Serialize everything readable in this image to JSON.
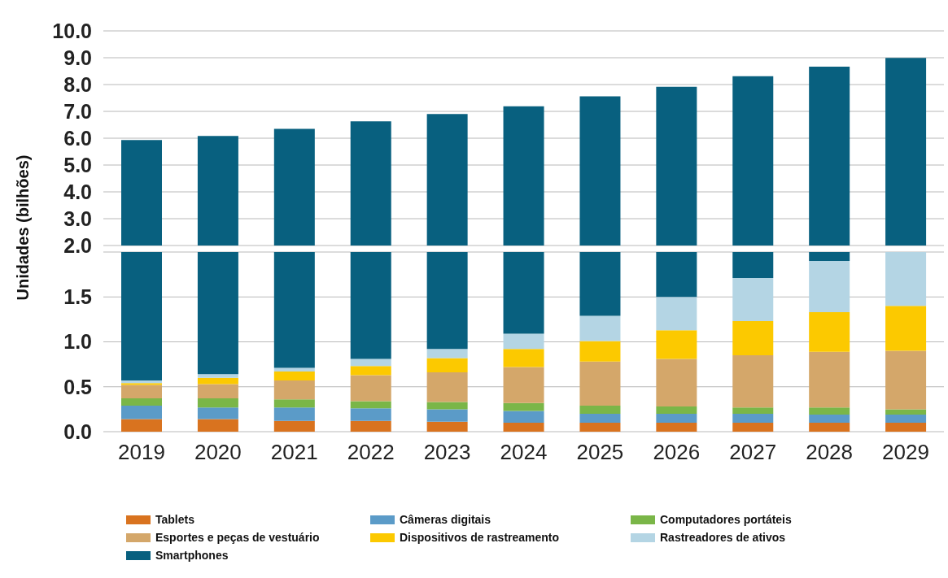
{
  "chart_data": [
    {
      "type": "bar",
      "ylabel": "Unidades (bilhões)",
      "categories": [
        "2019",
        "2020",
        "2021",
        "2022",
        "2023",
        "2024",
        "2025",
        "2026",
        "2027",
        "2028",
        "2029"
      ],
      "series": [
        {
          "color": "#08607f",
          "values": [
            5.93,
            6.08,
            6.35,
            6.63,
            6.9,
            7.19,
            7.56,
            7.92,
            8.31,
            8.67,
            8.99
          ]
        }
      ],
      "ylim": [
        2,
        10
      ],
      "yticks": [
        {
          "value": 2,
          "label": "2.0"
        },
        {
          "value": 3,
          "label": "3.0"
        },
        {
          "value": 4,
          "label": "4.0"
        },
        {
          "value": 5,
          "label": "5.0"
        },
        {
          "value": 6,
          "label": "6.0"
        },
        {
          "value": 7,
          "label": "7.0"
        },
        {
          "value": 8,
          "label": "8.0"
        },
        {
          "value": 9,
          "label": "9.0"
        },
        {
          "value": 10,
          "label": "10.0"
        }
      ],
      "grid": "y",
      "tick_labels": "y"
    },
    {
      "type": "bar",
      "stacked": true,
      "categories": [
        "2019",
        "2020",
        "2021",
        "2022",
        "2023",
        "2024",
        "2025",
        "2026",
        "2027",
        "2028",
        "2029"
      ],
      "series": [
        {
          "name": "Tablets",
          "color": "#d9731f",
          "values": [
            0.14,
            0.14,
            0.12,
            0.12,
            0.11,
            0.1,
            0.1,
            0.1,
            0.1,
            0.1,
            0.1
          ]
        },
        {
          "name": "Câmeras digitais",
          "color": "#5b9bc8",
          "values": [
            0.15,
            0.13,
            0.15,
            0.14,
            0.14,
            0.13,
            0.1,
            0.1,
            0.1,
            0.09,
            0.09
          ]
        },
        {
          "name": "Computadores portáteis",
          "color": "#7ab648",
          "values": [
            0.08,
            0.1,
            0.09,
            0.08,
            0.08,
            0.09,
            0.09,
            0.08,
            0.07,
            0.08,
            0.06
          ]
        },
        {
          "name": "Esportes e peças de vestuário",
          "color": "#d4a76a",
          "values": [
            0.15,
            0.16,
            0.21,
            0.29,
            0.33,
            0.4,
            0.49,
            0.53,
            0.58,
            0.62,
            0.65
          ]
        },
        {
          "name": "Dispositivos de rastreamento",
          "color": "#fcc900",
          "values": [
            0.02,
            0.07,
            0.1,
            0.1,
            0.16,
            0.2,
            0.23,
            0.32,
            0.38,
            0.44,
            0.5
          ]
        },
        {
          "name": "Rastreadores de ativos",
          "color": "#b4d5e4",
          "values": [
            0.03,
            0.04,
            0.04,
            0.08,
            0.1,
            0.17,
            0.28,
            0.37,
            0.48,
            0.57,
            0.6
          ]
        },
        {
          "name": "Smartphones",
          "color": "#08607f",
          "values": [
            1.43,
            1.36,
            1.29,
            1.19,
            1.08,
            0.91,
            0.71,
            0.5,
            0.29,
            0.1,
            null
          ]
        }
      ],
      "ylim": [
        0,
        2
      ],
      "yticks": [
        {
          "value": 0,
          "label": "0.0"
        },
        {
          "value": 0.5,
          "label": "0.5"
        },
        {
          "value": 1,
          "label": "1.0"
        },
        {
          "value": 1.5,
          "label": "1.5"
        },
        {
          "value": 2,
          "label": null
        }
      ],
      "grid": "y",
      "legend": "bottom"
    }
  ]
}
